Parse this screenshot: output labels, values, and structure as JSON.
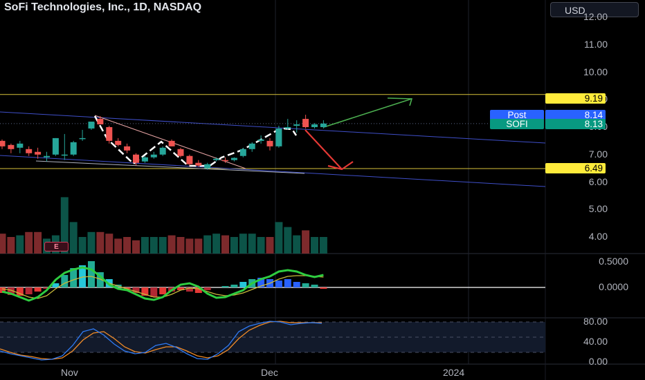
{
  "header": {
    "title": "SoFi Technologies, Inc., 1D, NASDAQ",
    "currency": "USD"
  },
  "price_axis": {
    "labels": [
      "12.00",
      "11.00",
      "10.00",
      "9.00",
      "8.00",
      "7.00",
      "6.00",
      "5.00",
      "4.00"
    ],
    "markers": [
      {
        "label": "9.19",
        "color": "#ffeb3b",
        "text_color": "#000000"
      },
      {
        "tag": "Post",
        "label": "8.14",
        "color": "#2962ff",
        "text_color": "#ffffff"
      },
      {
        "tag": "SOFI",
        "label": "8.13",
        "color": "#089981",
        "text_color": "#ffffff"
      },
      {
        "label": "6.49",
        "color": "#ffeb3b",
        "text_color": "#000000"
      }
    ]
  },
  "macd_axis": {
    "labels": [
      "0.5000",
      "0.0000"
    ]
  },
  "stoch_axis": {
    "labels": [
      "80.00",
      "40.00",
      "0.00"
    ]
  },
  "time_axis": {
    "labels": [
      "Nov",
      "Dec",
      "2024"
    ]
  },
  "earnings_marker": "E",
  "chart_data": {
    "type": "candlestick",
    "symbol": "SOFI",
    "interval": "1D",
    "candles": [
      {
        "o": 7.5,
        "h": 7.55,
        "l": 7.2,
        "c": 7.3
      },
      {
        "o": 7.35,
        "h": 7.4,
        "l": 7.05,
        "c": 7.2
      },
      {
        "o": 7.25,
        "h": 7.5,
        "l": 7.05,
        "c": 7.4
      },
      {
        "o": 7.2,
        "h": 7.3,
        "l": 6.95,
        "c": 7.05
      },
      {
        "o": 7.1,
        "h": 7.25,
        "l": 6.85,
        "c": 7.0
      },
      {
        "o": 6.9,
        "h": 7.1,
        "l": 6.75,
        "c": 6.95
      },
      {
        "o": 7.0,
        "h": 7.6,
        "l": 6.95,
        "c": 7.6
      },
      {
        "o": 7.0,
        "h": 7.75,
        "l": 6.8,
        "c": 7.0
      },
      {
        "o": 7.0,
        "h": 7.5,
        "l": 6.95,
        "c": 7.45
      },
      {
        "o": 7.6,
        "h": 7.9,
        "l": 7.5,
        "c": 7.6
      },
      {
        "o": 7.95,
        "h": 8.15,
        "l": 7.9,
        "c": 8.2
      },
      {
        "o": 8.3,
        "h": 8.4,
        "l": 8.1,
        "c": 8.1
      },
      {
        "o": 8.0,
        "h": 8.05,
        "l": 7.4,
        "c": 7.5
      },
      {
        "o": 7.5,
        "h": 7.6,
        "l": 7.3,
        "c": 7.35
      },
      {
        "o": 7.3,
        "h": 7.4,
        "l": 7.05,
        "c": 7.15
      },
      {
        "o": 7.0,
        "h": 7.05,
        "l": 6.6,
        "c": 6.7
      },
      {
        "o": 6.75,
        "h": 6.95,
        "l": 6.7,
        "c": 6.9
      },
      {
        "o": 6.9,
        "h": 7.1,
        "l": 6.85,
        "c": 7.0
      },
      {
        "o": 7.0,
        "h": 7.3,
        "l": 6.95,
        "c": 7.25
      },
      {
        "o": 7.5,
        "h": 7.55,
        "l": 7.3,
        "c": 7.3
      },
      {
        "o": 7.2,
        "h": 7.25,
        "l": 6.9,
        "c": 6.95
      },
      {
        "o": 6.95,
        "h": 7.0,
        "l": 6.6,
        "c": 6.65
      },
      {
        "o": 6.7,
        "h": 6.8,
        "l": 6.55,
        "c": 6.6
      },
      {
        "o": 6.5,
        "h": 6.7,
        "l": 6.45,
        "c": 6.65
      },
      {
        "o": 6.8,
        "h": 6.9,
        "l": 6.75,
        "c": 6.85
      },
      {
        "o": 6.8,
        "h": 6.9,
        "l": 6.7,
        "c": 6.78
      },
      {
        "o": 6.8,
        "h": 6.9,
        "l": 6.75,
        "c": 6.88
      },
      {
        "o": 6.95,
        "h": 7.25,
        "l": 6.9,
        "c": 7.2
      },
      {
        "o": 7.2,
        "h": 7.45,
        "l": 7.1,
        "c": 7.4
      },
      {
        "o": 7.5,
        "h": 7.7,
        "l": 7.4,
        "c": 7.55
      },
      {
        "o": 7.5,
        "h": 7.6,
        "l": 7.15,
        "c": 7.3
      },
      {
        "o": 7.3,
        "h": 8.05,
        "l": 7.25,
        "c": 7.95
      },
      {
        "o": 7.95,
        "h": 8.3,
        "l": 7.9,
        "c": 8.0
      },
      {
        "o": 8.05,
        "h": 8.25,
        "l": 7.8,
        "c": 8.1
      },
      {
        "o": 8.3,
        "h": 8.45,
        "l": 7.95,
        "c": 8.0
      },
      {
        "o": 8.0,
        "h": 8.15,
        "l": 7.95,
        "c": 8.1
      },
      {
        "o": 8.0,
        "h": 8.25,
        "l": 7.95,
        "c": 8.13
      }
    ],
    "volume": [
      1.2,
      1.0,
      1.1,
      1.3,
      1.3,
      0.9,
      1.1,
      3.4,
      1.9,
      1.0,
      1.3,
      1.3,
      1.2,
      0.9,
      1.0,
      0.8,
      1.0,
      1.0,
      1.0,
      1.1,
      1.0,
      0.9,
      0.9,
      1.1,
      1.2,
      1.1,
      1.0,
      1.2,
      1.2,
      1.0,
      1.0,
      1.9,
      1.6,
      1.1,
      1.4,
      1.0,
      1.0
    ],
    "ylim": [
      3.75,
      12.2
    ]
  }
}
